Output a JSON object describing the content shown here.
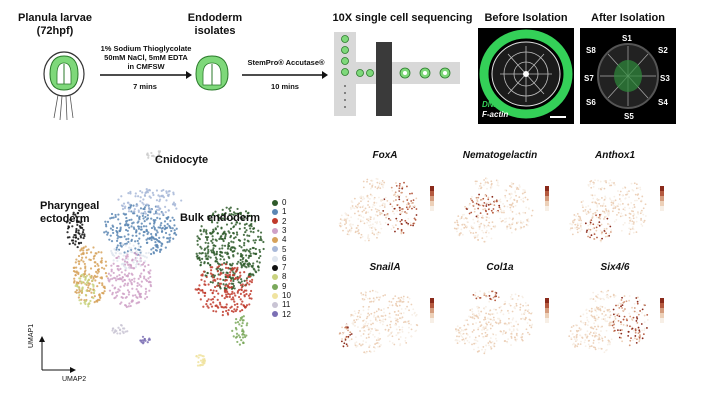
{
  "workflow": {
    "stage1_title": "Planula larvae\n(72hpf)",
    "treatment1_text": "1% Sodium Thioglycolate\n50mM NaCl, 5mM EDTA\nin CMFSW",
    "treatment1_time": "7 mins",
    "stage2_title": "Endoderm\nisolates",
    "treatment2_text": "StemPro® Accutase®",
    "treatment2_time": "10 mins",
    "stage3_title": "10X single cell sequencing",
    "before_title": "Before Isolation",
    "after_title": "After Isolation",
    "before_dna_label": "DNA",
    "before_factin_label": "F-actin",
    "sector_labels": [
      "S1",
      "S2",
      "S3",
      "S4",
      "S5",
      "S6",
      "S7",
      "S8"
    ]
  },
  "umap": {
    "cluster_labels": {
      "cnidocyte": "Cnidocyte",
      "pharyngeal": "Pharyngeal\nectoderm",
      "bulk": "Bulk endoderm"
    },
    "axis_y": "UMAP1",
    "axis_x": "UMAP2",
    "legend": [
      {
        "label": "0",
        "color": "#2e5a2a"
      },
      {
        "label": "1",
        "color": "#5b86b3"
      },
      {
        "label": "2",
        "color": "#c0392b"
      },
      {
        "label": "3",
        "color": "#cfa1c7"
      },
      {
        "label": "4",
        "color": "#d6a25a"
      },
      {
        "label": "5",
        "color": "#a8b8d8"
      },
      {
        "label": "6",
        "color": "#e0e6ef"
      },
      {
        "label": "7",
        "color": "#111111"
      },
      {
        "label": "8",
        "color": "#c9d27f"
      },
      {
        "label": "9",
        "color": "#7aa85b"
      },
      {
        "label": "10",
        "color": "#f0e3a0"
      },
      {
        "label": "11",
        "color": "#c9c4d4"
      },
      {
        "label": "12",
        "color": "#7b6fb4"
      }
    ]
  },
  "feature_maps": [
    {
      "gene": "FoxA"
    },
    {
      "gene": "Nematogelactin"
    },
    {
      "gene": "Anthox1"
    },
    {
      "gene": "SnailA"
    },
    {
      "gene": "Col1a"
    },
    {
      "gene": "Six4/6"
    }
  ]
}
